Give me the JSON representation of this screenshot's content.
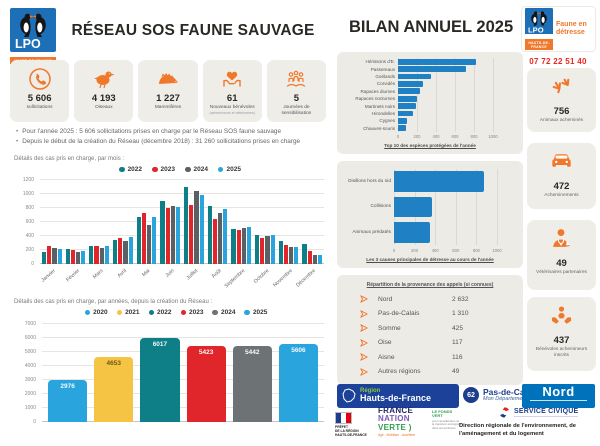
{
  "theme": {
    "accent": "#f0782a",
    "red": "#e8251f",
    "chart_blue": "#1f80c4",
    "text_dark": "#2b2824"
  },
  "lpo": {
    "acronym": "LPO",
    "region_band": "HAUTS-DE-FRANCE",
    "tagline": "Faune en détresse"
  },
  "header": {
    "title": "RÉSEAU SOS FAUNE SAUVAGE"
  },
  "right": {
    "title": "BILAN ANNUEL 2025",
    "phone": "07 72 22 51 40"
  },
  "stats": [
    {
      "value": "5 606",
      "label": "sollicitations",
      "icon": "phone-icon"
    },
    {
      "value": "4 193",
      "label": "Oiseaux",
      "icon": "bird-icon"
    },
    {
      "value": "1 227",
      "label": "Mammifères",
      "icon": "hedgehog-icon"
    },
    {
      "value": "61",
      "label": "Nouveaux bénévoles",
      "sublabel": "(achemineurs et vétérinaires)",
      "icon": "heart-hands-icon"
    },
    {
      "value": "5",
      "label": "Journées de sensibilisation",
      "icon": "people-icon"
    }
  ],
  "bullets": [
    "Pour l'année 2025 : 5 606 sollicitations prises en charge par le Réseau SOS faune sauvage",
    "Depuis le début de la création du Réseau (décembre 2018) : 31 260 sollicitations prises en charge"
  ],
  "labels": {
    "monthly": "Détails des cas pris en charge, par mois :",
    "yearly": "Détails des cas pris en charge, par années, depuis la création du Réseau :"
  },
  "provenance": {
    "title": "Répartition de la provenance des appels (si connues)",
    "rows": [
      {
        "label": "Nord",
        "value": "2 632"
      },
      {
        "label": "Pas-de-Calais",
        "value": "1 310"
      },
      {
        "label": "Somme",
        "value": "425"
      },
      {
        "label": "Oise",
        "value": "117"
      },
      {
        "label": "Aisne",
        "value": "116"
      },
      {
        "label": "Autres régions",
        "value": "49"
      }
    ]
  },
  "side_stats": [
    {
      "value": "756",
      "label": "Animaux acheminés",
      "icon": "bird-tracks-icon"
    },
    {
      "value": "472",
      "label": "Acheminements",
      "icon": "car-icon"
    },
    {
      "value": "49",
      "label": "Vétérinaires partenaires",
      "icon": "veterinarian-icon"
    },
    {
      "value": "437",
      "label": "Bénévoles achemineurs inscrits",
      "icon": "hands-holding-icon"
    }
  ],
  "footer": {
    "region": {
      "small": "Région",
      "big": "Hauts-de-France"
    },
    "pdc": {
      "num": "62",
      "name": "Pas-de-Calais",
      "sub": "Mon Département"
    },
    "nord": "Nord",
    "prefet": [
      "PRÉFET",
      "DE LA RÉGION",
      "HAUTS-DE-FRANCE"
    ],
    "fnv": {
      "l1": "FRANCE",
      "l2": "NATION",
      "l3": "VERTE )",
      "tag": "Agir - Mobiliser - Accélérer"
    },
    "fonds_vert": {
      "title": "LE FONDS VERT",
      "sub": "pour l'accélération de la transition écologique dans les territoires"
    },
    "civique": "SERVICE CIVIQUE",
    "dreal": "Direction régionale de l'environnement, de l'aménagement et du logement"
  },
  "chart_data": [
    {
      "id": "monthly",
      "type": "bar",
      "title": "Détails des cas pris en charge, par mois",
      "categories": [
        "Janvier",
        "Février",
        "Mars",
        "Avril",
        "Mai",
        "Juin",
        "Juillet",
        "Août",
        "Septembre",
        "Octobre",
        "Novembre",
        "Décembre"
      ],
      "series": [
        {
          "name": "2022",
          "color": "#0e7f86",
          "values": [
            165,
            215,
            260,
            345,
            675,
            900,
            1100,
            835,
            500,
            420,
            325,
            290
          ]
        },
        {
          "name": "2023",
          "color": "#e0262a",
          "values": [
            255,
            200,
            255,
            375,
            730,
            795,
            845,
            640,
            480,
            365,
            265,
            185
          ]
        },
        {
          "name": "2024",
          "color": "#5b6065",
          "values": [
            225,
            165,
            235,
            330,
            560,
            825,
            1040,
            735,
            520,
            405,
            245,
            135
          ]
        },
        {
          "name": "2025",
          "color": "#2aa4dc",
          "values": [
            220,
            180,
            255,
            380,
            665,
            815,
            985,
            790,
            535,
            410,
            250,
            135
          ]
        }
      ],
      "ylim": [
        0,
        1200
      ],
      "ytick": 200,
      "grid": true,
      "legend_position": "top"
    },
    {
      "id": "top10",
      "type": "bar-horizontal",
      "caption": "Top 10 des espèces protégées de l'année",
      "categories": [
        "Hérissons d'E.",
        "Passereaux",
        "Goélands",
        "Corvidés",
        "Rapaces diurnes",
        "Rapaces nocturnes",
        "Martinets noirs",
        "Hirondelles",
        "Cygnes",
        "Chauves-souris"
      ],
      "values": [
        820,
        720,
        350,
        260,
        230,
        195,
        185,
        160,
        95,
        85
      ],
      "color": "#1f80c4",
      "xlim": [
        0,
        1000
      ],
      "xtick": 200,
      "grid": true
    },
    {
      "id": "causes",
      "type": "bar-horizontal",
      "caption": "Les 3 causes principales de détresse au cours de l'année",
      "categories": [
        "Oisillons hors du nid",
        "Collisions",
        "Animaux prédatés"
      ],
      "values": [
        870,
        370,
        350
      ],
      "color": "#1f80c4",
      "xlim": [
        0,
        1000
      ],
      "xtick": 200,
      "grid": true
    },
    {
      "id": "yearly",
      "type": "bar",
      "title": "Détails des cas pris en charge, par années, depuis la création du Réseau",
      "categories": [
        "2020",
        "2021",
        "2022",
        "2023",
        "2024",
        "2025"
      ],
      "values": [
        2976,
        4653,
        6017,
        5423,
        5442,
        5606
      ],
      "colors": [
        "#2aa4dc",
        "#f6c445",
        "#0e7f86",
        "#e0262a",
        "#6d7275",
        "#2aa4dc"
      ],
      "ylim": [
        0,
        7000
      ],
      "ytick": 1000,
      "grid": true,
      "legend_position": "top",
      "bar_labels": true
    }
  ]
}
